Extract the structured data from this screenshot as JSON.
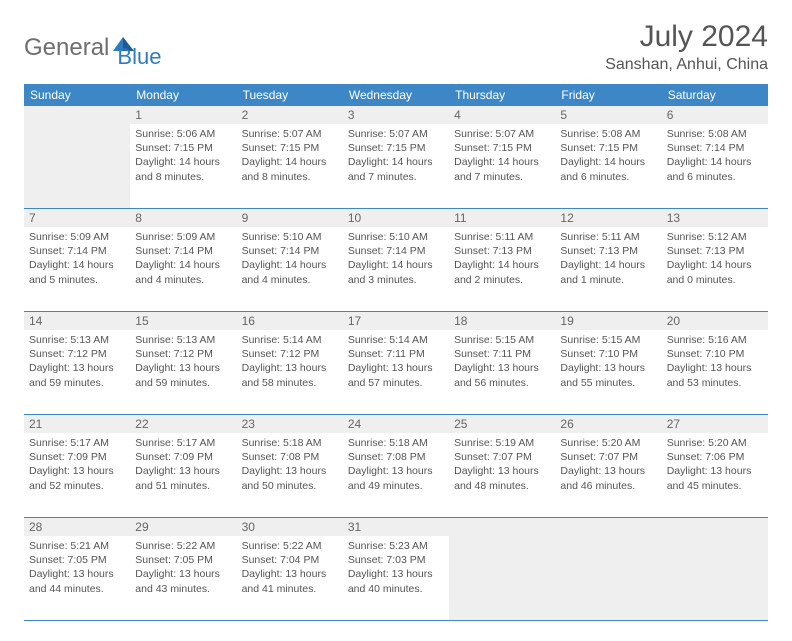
{
  "logo": {
    "general": "General",
    "blue": "Blue"
  },
  "title": "July 2024",
  "location": "Sanshan, Anhui, China",
  "weekdays": [
    "Sunday",
    "Monday",
    "Tuesday",
    "Wednesday",
    "Thursday",
    "Friday",
    "Saturday"
  ],
  "colors": {
    "header_bg": "#3d87c7",
    "shade_bg": "#efefef",
    "border": "#3d87c7",
    "text": "#555555",
    "logo_gray": "#6e6e6e",
    "logo_blue": "#2f7bbf"
  },
  "weeks": [
    [
      {
        "day": "",
        "sunrise": "",
        "sunset": "",
        "daylight": ""
      },
      {
        "day": "1",
        "sunrise": "Sunrise: 5:06 AM",
        "sunset": "Sunset: 7:15 PM",
        "daylight": "Daylight: 14 hours and 8 minutes."
      },
      {
        "day": "2",
        "sunrise": "Sunrise: 5:07 AM",
        "sunset": "Sunset: 7:15 PM",
        "daylight": "Daylight: 14 hours and 8 minutes."
      },
      {
        "day": "3",
        "sunrise": "Sunrise: 5:07 AM",
        "sunset": "Sunset: 7:15 PM",
        "daylight": "Daylight: 14 hours and 7 minutes."
      },
      {
        "day": "4",
        "sunrise": "Sunrise: 5:07 AM",
        "sunset": "Sunset: 7:15 PM",
        "daylight": "Daylight: 14 hours and 7 minutes."
      },
      {
        "day": "5",
        "sunrise": "Sunrise: 5:08 AM",
        "sunset": "Sunset: 7:15 PM",
        "daylight": "Daylight: 14 hours and 6 minutes."
      },
      {
        "day": "6",
        "sunrise": "Sunrise: 5:08 AM",
        "sunset": "Sunset: 7:14 PM",
        "daylight": "Daylight: 14 hours and 6 minutes."
      }
    ],
    [
      {
        "day": "7",
        "sunrise": "Sunrise: 5:09 AM",
        "sunset": "Sunset: 7:14 PM",
        "daylight": "Daylight: 14 hours and 5 minutes."
      },
      {
        "day": "8",
        "sunrise": "Sunrise: 5:09 AM",
        "sunset": "Sunset: 7:14 PM",
        "daylight": "Daylight: 14 hours and 4 minutes."
      },
      {
        "day": "9",
        "sunrise": "Sunrise: 5:10 AM",
        "sunset": "Sunset: 7:14 PM",
        "daylight": "Daylight: 14 hours and 4 minutes."
      },
      {
        "day": "10",
        "sunrise": "Sunrise: 5:10 AM",
        "sunset": "Sunset: 7:14 PM",
        "daylight": "Daylight: 14 hours and 3 minutes."
      },
      {
        "day": "11",
        "sunrise": "Sunrise: 5:11 AM",
        "sunset": "Sunset: 7:13 PM",
        "daylight": "Daylight: 14 hours and 2 minutes."
      },
      {
        "day": "12",
        "sunrise": "Sunrise: 5:11 AM",
        "sunset": "Sunset: 7:13 PM",
        "daylight": "Daylight: 14 hours and 1 minute."
      },
      {
        "day": "13",
        "sunrise": "Sunrise: 5:12 AM",
        "sunset": "Sunset: 7:13 PM",
        "daylight": "Daylight: 14 hours and 0 minutes."
      }
    ],
    [
      {
        "day": "14",
        "sunrise": "Sunrise: 5:13 AM",
        "sunset": "Sunset: 7:12 PM",
        "daylight": "Daylight: 13 hours and 59 minutes."
      },
      {
        "day": "15",
        "sunrise": "Sunrise: 5:13 AM",
        "sunset": "Sunset: 7:12 PM",
        "daylight": "Daylight: 13 hours and 59 minutes."
      },
      {
        "day": "16",
        "sunrise": "Sunrise: 5:14 AM",
        "sunset": "Sunset: 7:12 PM",
        "daylight": "Daylight: 13 hours and 58 minutes."
      },
      {
        "day": "17",
        "sunrise": "Sunrise: 5:14 AM",
        "sunset": "Sunset: 7:11 PM",
        "daylight": "Daylight: 13 hours and 57 minutes."
      },
      {
        "day": "18",
        "sunrise": "Sunrise: 5:15 AM",
        "sunset": "Sunset: 7:11 PM",
        "daylight": "Daylight: 13 hours and 56 minutes."
      },
      {
        "day": "19",
        "sunrise": "Sunrise: 5:15 AM",
        "sunset": "Sunset: 7:10 PM",
        "daylight": "Daylight: 13 hours and 55 minutes."
      },
      {
        "day": "20",
        "sunrise": "Sunrise: 5:16 AM",
        "sunset": "Sunset: 7:10 PM",
        "daylight": "Daylight: 13 hours and 53 minutes."
      }
    ],
    [
      {
        "day": "21",
        "sunrise": "Sunrise: 5:17 AM",
        "sunset": "Sunset: 7:09 PM",
        "daylight": "Daylight: 13 hours and 52 minutes."
      },
      {
        "day": "22",
        "sunrise": "Sunrise: 5:17 AM",
        "sunset": "Sunset: 7:09 PM",
        "daylight": "Daylight: 13 hours and 51 minutes."
      },
      {
        "day": "23",
        "sunrise": "Sunrise: 5:18 AM",
        "sunset": "Sunset: 7:08 PM",
        "daylight": "Daylight: 13 hours and 50 minutes."
      },
      {
        "day": "24",
        "sunrise": "Sunrise: 5:18 AM",
        "sunset": "Sunset: 7:08 PM",
        "daylight": "Daylight: 13 hours and 49 minutes."
      },
      {
        "day": "25",
        "sunrise": "Sunrise: 5:19 AM",
        "sunset": "Sunset: 7:07 PM",
        "daylight": "Daylight: 13 hours and 48 minutes."
      },
      {
        "day": "26",
        "sunrise": "Sunrise: 5:20 AM",
        "sunset": "Sunset: 7:07 PM",
        "daylight": "Daylight: 13 hours and 46 minutes."
      },
      {
        "day": "27",
        "sunrise": "Sunrise: 5:20 AM",
        "sunset": "Sunset: 7:06 PM",
        "daylight": "Daylight: 13 hours and 45 minutes."
      }
    ],
    [
      {
        "day": "28",
        "sunrise": "Sunrise: 5:21 AM",
        "sunset": "Sunset: 7:05 PM",
        "daylight": "Daylight: 13 hours and 44 minutes."
      },
      {
        "day": "29",
        "sunrise": "Sunrise: 5:22 AM",
        "sunset": "Sunset: 7:05 PM",
        "daylight": "Daylight: 13 hours and 43 minutes."
      },
      {
        "day": "30",
        "sunrise": "Sunrise: 5:22 AM",
        "sunset": "Sunset: 7:04 PM",
        "daylight": "Daylight: 13 hours and 41 minutes."
      },
      {
        "day": "31",
        "sunrise": "Sunrise: 5:23 AM",
        "sunset": "Sunset: 7:03 PM",
        "daylight": "Daylight: 13 hours and 40 minutes."
      },
      {
        "day": "",
        "sunrise": "",
        "sunset": "",
        "daylight": ""
      },
      {
        "day": "",
        "sunrise": "",
        "sunset": "",
        "daylight": ""
      },
      {
        "day": "",
        "sunrise": "",
        "sunset": "",
        "daylight": ""
      }
    ]
  ]
}
